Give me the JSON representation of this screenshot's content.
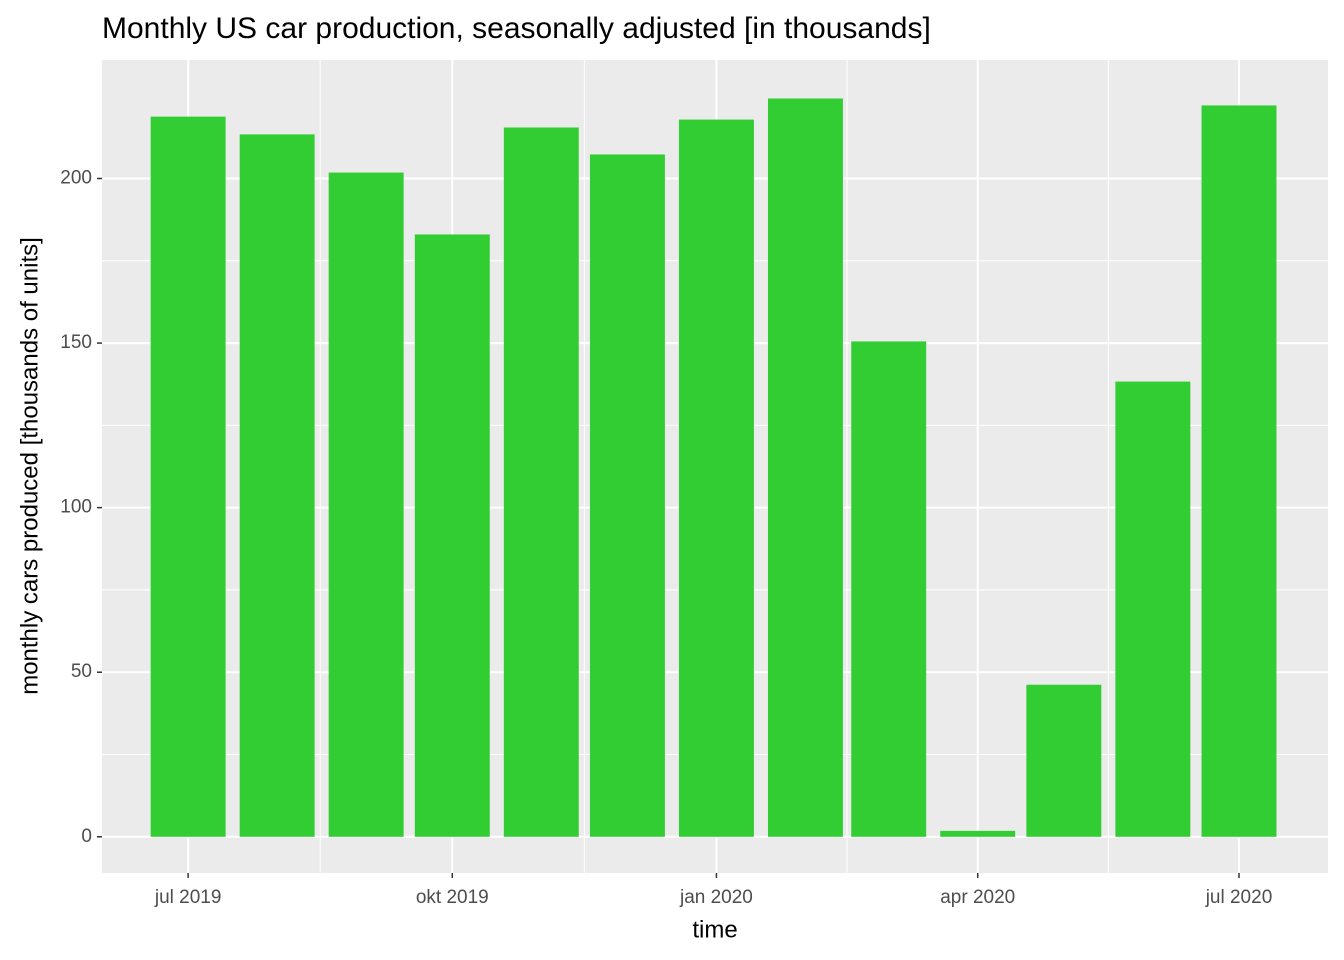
{
  "chart_data": {
    "type": "bar",
    "title": "Monthly US car production, seasonally adjusted [in thousands]",
    "x_label": "time",
    "y_label": "monthly cars produced [thousands of units]",
    "x": [
      "2019-07",
      "2019-08",
      "2019-09",
      "2019-10",
      "2019-11",
      "2019-12",
      "2020-01",
      "2020-02",
      "2020-03",
      "2020-04",
      "2020-05",
      "2020-06",
      "2020-07"
    ],
    "values": [
      218.8,
      213.4,
      201.8,
      183.0,
      215.5,
      207.3,
      217.9,
      224.3,
      150.5,
      1.8,
      46.2,
      138.3,
      222.2
    ],
    "color": "#32CD32",
    "xlim": [
      "2019-06",
      "2020-08"
    ],
    "xticks": [
      {
        "value": "2019-07",
        "label": "jul 2019"
      },
      {
        "value": "2019-10",
        "label": "okt 2019"
      },
      {
        "value": "2020-01",
        "label": "jan 2020"
      },
      {
        "value": "2020-04",
        "label": "apr 2020"
      },
      {
        "value": "2020-07",
        "label": "jul 2020"
      }
    ],
    "ylim": [
      -11,
      236
    ],
    "yticks": [
      0,
      50,
      100,
      150,
      200
    ],
    "grid": true
  }
}
